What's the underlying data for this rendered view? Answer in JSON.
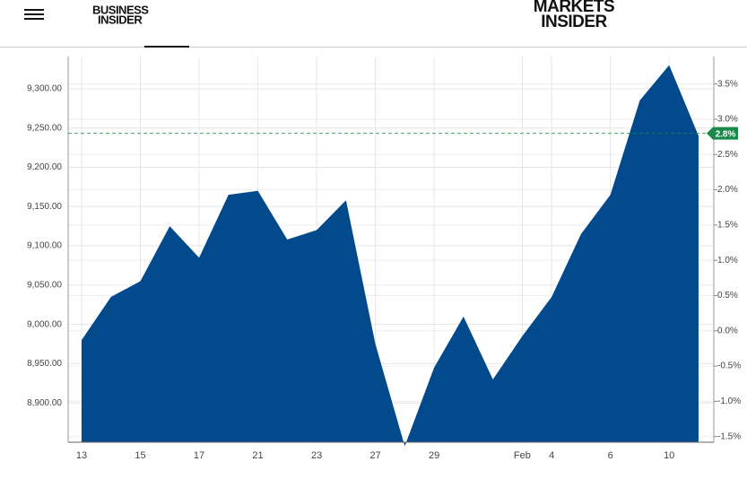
{
  "header": {
    "left_logo": [
      "BUSINESS",
      "INSIDER"
    ],
    "right_logo": [
      "MARKETS",
      "INSIDER"
    ]
  },
  "chart_data": {
    "type": "area",
    "categories": [
      "13",
      null,
      "15",
      null,
      "17",
      null,
      "21",
      null,
      "23",
      null,
      "27",
      null,
      "29",
      null,
      null,
      "Feb",
      "4",
      null,
      "6",
      null,
      "10",
      null
    ],
    "values": [
      8980,
      9035,
      9055,
      9125,
      9085,
      9165,
      9170,
      9108,
      9120,
      9158,
      8975,
      8845,
      8945,
      9010,
      8930,
      8985,
      9035,
      9115,
      9165,
      9285,
      9330,
      9240
    ],
    "color": "#034a8d",
    "ylim": [
      8850,
      9341
    ],
    "yticks": [
      {
        "value": 8900,
        "label": "8,900.00"
      },
      {
        "value": 8950,
        "label": "8,950.00"
      },
      {
        "value": 9000,
        "label": "9,000.00"
      },
      {
        "value": 9050,
        "label": "9,050.00"
      },
      {
        "value": 9100,
        "label": "9,100.00"
      },
      {
        "value": 9150,
        "label": "9,150.00"
      },
      {
        "value": 9200,
        "label": "9,200.00"
      },
      {
        "value": 9250,
        "label": "9,250.00"
      },
      {
        "value": 9300,
        "label": "9,300.00"
      }
    ],
    "y2lim": [
      -1.58,
      3.89
    ],
    "y2ticks": [
      {
        "value": -1.5,
        "label": "-1.5%"
      },
      {
        "value": -1,
        "label": "-1.0%"
      },
      {
        "value": -0.5,
        "label": "-0.5%"
      },
      {
        "value": 0,
        "label": "0.0%"
      },
      {
        "value": 0.5,
        "label": "0.5%"
      },
      {
        "value": 1,
        "label": "1.0%"
      },
      {
        "value": 1.5,
        "label": "1.5%"
      },
      {
        "value": 2,
        "label": "2.0%"
      },
      {
        "value": 2.5,
        "label": "2.5%"
      },
      {
        "value": 3,
        "label": "3.0%"
      },
      {
        "value": 3.5,
        "label": "3.5%"
      }
    ],
    "current_change": {
      "value": 2.8,
      "label": "2.8%",
      "color": "#1a8a4a"
    },
    "grid": true
  }
}
